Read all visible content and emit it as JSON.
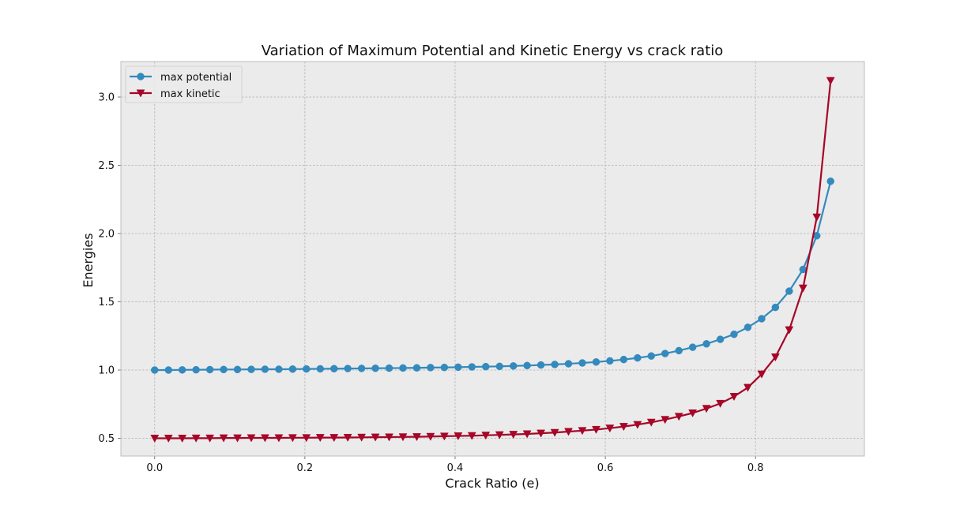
{
  "chart_data": {
    "type": "line",
    "title": "Variation of Maximum Potential and Kinetic Energy vs crack ratio",
    "xlabel": "Crack Ratio (e)",
    "ylabel": "Energies",
    "xlim": [
      -0.045,
      0.945
    ],
    "ylim": [
      0.37,
      3.26
    ],
    "xticks": [
      0.0,
      0.2,
      0.4,
      0.6,
      0.8
    ],
    "xtick_labels": [
      "0.0",
      "0.2",
      "0.4",
      "0.6",
      "0.8"
    ],
    "yticks": [
      0.5,
      1.0,
      1.5,
      2.0,
      2.5,
      3.0
    ],
    "ytick_labels": [
      "0.5",
      "1.0",
      "1.5",
      "2.0",
      "2.5",
      "3.0"
    ],
    "grid": true,
    "legend_position": "top-left",
    "background_color": "#ebebeb",
    "x": [
      0.0,
      0.0184,
      0.0367,
      0.0551,
      0.0735,
      0.0918,
      0.1102,
      0.1286,
      0.1469,
      0.1653,
      0.1837,
      0.202,
      0.2204,
      0.2388,
      0.2571,
      0.2755,
      0.2939,
      0.3122,
      0.3306,
      0.349,
      0.3673,
      0.3857,
      0.4041,
      0.4224,
      0.4408,
      0.4592,
      0.4776,
      0.4959,
      0.5143,
      0.5327,
      0.551,
      0.5694,
      0.5878,
      0.6061,
      0.6245,
      0.6429,
      0.6612,
      0.6796,
      0.698,
      0.7163,
      0.7347,
      0.7531,
      0.7714,
      0.7898,
      0.8082,
      0.8265,
      0.8449,
      0.8633,
      0.8816,
      0.9
    ],
    "series": [
      {
        "name": "max potential",
        "color": "#348abd",
        "marker": "circle",
        "values": [
          1.0,
          1.0,
          1.001,
          1.002,
          1.003,
          1.004,
          1.004,
          1.005,
          1.006,
          1.006,
          1.007,
          1.008,
          1.009,
          1.01,
          1.011,
          1.012,
          1.013,
          1.014,
          1.015,
          1.016,
          1.018,
          1.019,
          1.021,
          1.023,
          1.025,
          1.027,
          1.03,
          1.033,
          1.037,
          1.041,
          1.046,
          1.052,
          1.059,
          1.067,
          1.077,
          1.089,
          1.103,
          1.121,
          1.142,
          1.167,
          1.192,
          1.225,
          1.262,
          1.313,
          1.376,
          1.459,
          1.578,
          1.737,
          1.984,
          2.383
        ]
      },
      {
        "name": "max kinetic",
        "color": "#a60628",
        "marker": "triangle-down",
        "values": [
          0.5,
          0.5,
          0.5,
          0.501,
          0.501,
          0.502,
          0.502,
          0.503,
          0.503,
          0.503,
          0.504,
          0.504,
          0.505,
          0.505,
          0.506,
          0.507,
          0.508,
          0.509,
          0.51,
          0.511,
          0.513,
          0.515,
          0.517,
          0.519,
          0.522,
          0.525,
          0.528,
          0.532,
          0.537,
          0.542,
          0.549,
          0.556,
          0.564,
          0.574,
          0.586,
          0.6,
          0.617,
          0.637,
          0.66,
          0.685,
          0.718,
          0.755,
          0.806,
          0.872,
          0.97,
          1.095,
          1.294,
          1.6,
          2.12,
          3.12
        ]
      }
    ]
  }
}
